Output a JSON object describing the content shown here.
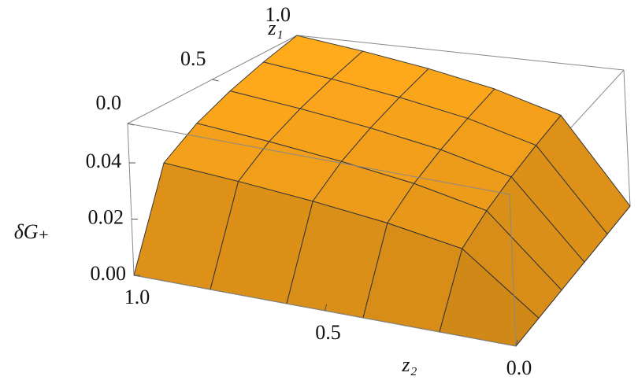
{
  "chart_data": {
    "type": "surface",
    "xlabel": "z₂",
    "ylabel": "z₁",
    "zlabel": "δG₊",
    "x": [
      0,
      0.2,
      0.4,
      0.6,
      0.8,
      1
    ],
    "y": [
      0,
      0.2,
      0.4,
      0.6,
      0.8,
      1
    ],
    "values": [
      [
        0,
        0,
        0,
        0,
        0,
        0
      ],
      [
        0,
        0.0206,
        0.0253,
        0.0286,
        0.0312,
        0.0333
      ],
      [
        0,
        0.0253,
        0.0312,
        0.0352,
        0.0384,
        0.041
      ],
      [
        0,
        0.0286,
        0.0352,
        0.0397,
        0.0433,
        0.0463
      ],
      [
        0,
        0.0312,
        0.0384,
        0.0433,
        0.0472,
        0.0505
      ],
      [
        0,
        0.0333,
        0.041,
        0.0463,
        0.0505,
        0.054
      ]
    ],
    "xlim": [
      0,
      1
    ],
    "ylim": [
      0,
      1
    ],
    "zlim": [
      0,
      0.054
    ],
    "xticks": [
      {
        "value": 0,
        "label": "0.0"
      },
      {
        "value": 0.5,
        "label": "0.5"
      },
      {
        "value": 1,
        "label": "1.0"
      }
    ],
    "yticks": [
      {
        "value": 0,
        "label": "0.0"
      },
      {
        "value": 0.5,
        "label": "0.5"
      },
      {
        "value": 1,
        "label": "1.0"
      }
    ],
    "zticks": [
      {
        "value": 0,
        "label": "0.00"
      },
      {
        "value": 0.02,
        "label": "0.02"
      },
      {
        "value": 0.04,
        "label": "0.04"
      }
    ],
    "color": "#f7a21b"
  }
}
